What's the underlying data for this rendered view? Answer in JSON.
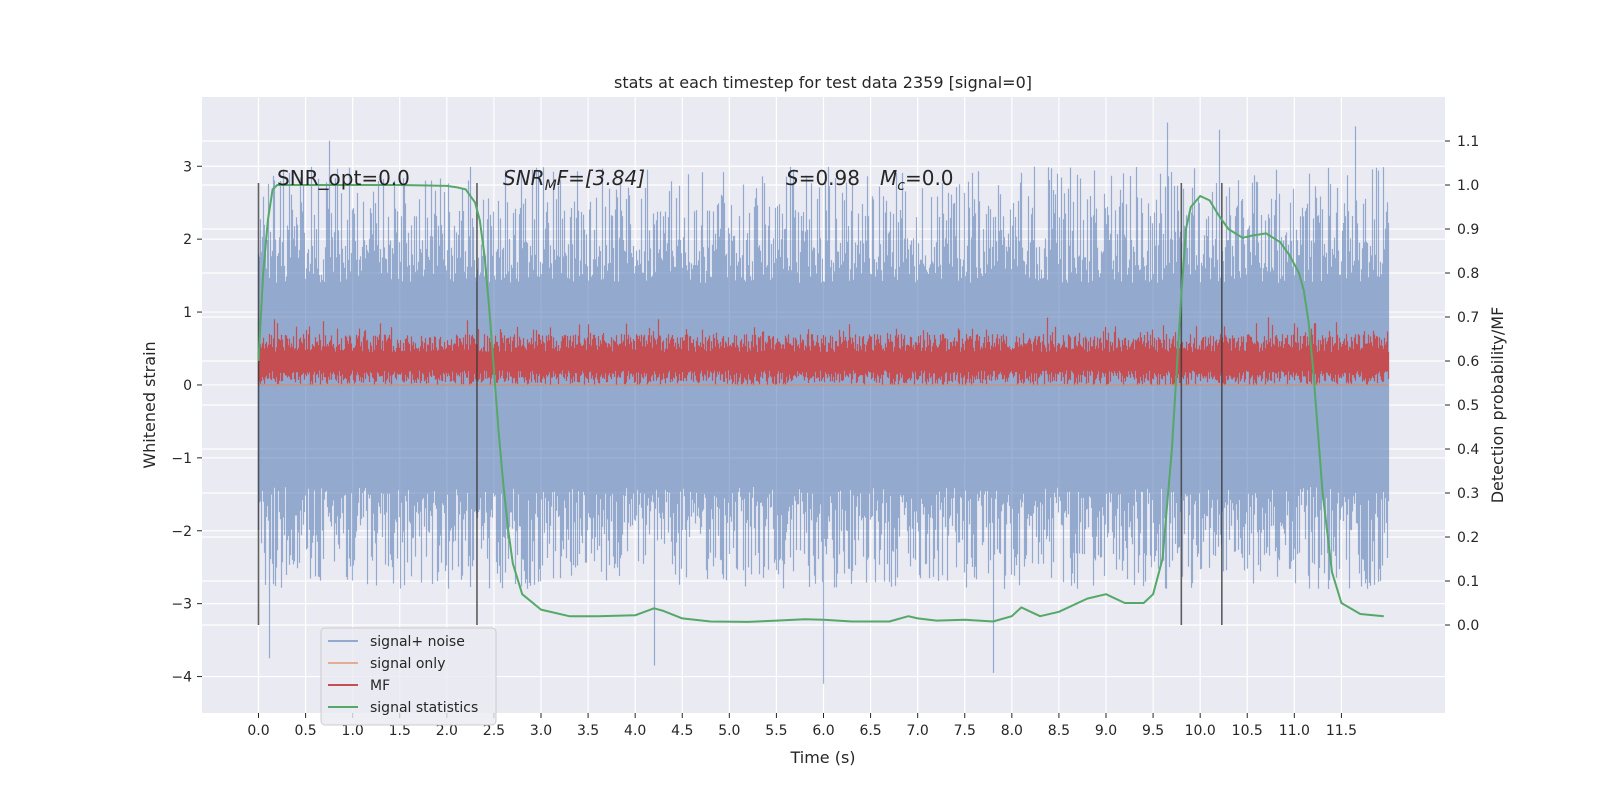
{
  "chart_data": {
    "type": "line",
    "title": "stats at each timestep for test data 2359 [signal=0]",
    "xlabel": "Time (s)",
    "ylabel": "Whitened strain",
    "ylabel_right": "Detection probability/MF",
    "xlim": [
      -0.6,
      12.6
    ],
    "ylim": [
      -4.5,
      3.95
    ],
    "ylim_right": [
      -0.2,
      1.2
    ],
    "x_ticks": [
      "0.0",
      "0.5",
      "1.0",
      "1.5",
      "2.0",
      "2.5",
      "3.0",
      "3.5",
      "4.0",
      "4.5",
      "5.0",
      "5.5",
      "6.0",
      "6.5",
      "7.0",
      "7.5",
      "8.0",
      "8.5",
      "9.0",
      "9.5",
      "10.0",
      "10.5",
      "11.0",
      "11.5"
    ],
    "y_ticks": [
      "−4",
      "−3",
      "−2",
      "−1",
      "0",
      "1",
      "2",
      "3"
    ],
    "y_ticks_right": [
      "0.0",
      "0.1",
      "0.2",
      "0.3",
      "0.4",
      "0.5",
      "0.6",
      "0.7",
      "0.8",
      "0.9",
      "1.0",
      "1.1"
    ],
    "grid": true,
    "legend_position": "lower-left",
    "annotations": {
      "snr_opt": "SNR_opt=0.0",
      "snr_mf_base": "SNR",
      "snr_mf_sub": "M",
      "snr_mf_tail": "F=[3.84]",
      "s_label": "S",
      "s_value": "=0.98",
      "mc_label": "M",
      "mc_sub": "c",
      "mc_value": "=0.0"
    },
    "series": [
      {
        "name": "signal+ noise",
        "axis": "left",
        "color": "#4c72b0",
        "style": "dense noise",
        "t_range": [
          0.0,
          12.0
        ],
        "envelope": [
          -2.3,
          2.3
        ],
        "typical_peak": 3.0,
        "extremes": [
          {
            "t": 0.12,
            "y": 3.25
          },
          {
            "t": 0.12,
            "y": -3.75
          },
          {
            "t": 0.75,
            "y": 3.35
          },
          {
            "t": 4.2,
            "y": -3.85
          },
          {
            "t": 6.0,
            "y": -4.1
          },
          {
            "t": 7.8,
            "y": -3.95
          },
          {
            "t": 9.65,
            "y": 3.6
          },
          {
            "t": 10.2,
            "y": 3.5
          },
          {
            "t": 11.65,
            "y": 3.55
          }
        ]
      },
      {
        "name": "signal only",
        "axis": "left",
        "color": "#dd8452",
        "style": "flat",
        "value": 0.0
      },
      {
        "name": "MF",
        "axis": "left",
        "color": "#c44e52",
        "style": "noise band",
        "t_range": [
          0.0,
          12.0
        ],
        "band": [
          0.0,
          0.95
        ]
      },
      {
        "name": "signal statistics",
        "axis": "right",
        "color": "#55a868",
        "style": "line",
        "x": [
          0.0,
          0.05,
          0.1,
          0.15,
          0.2,
          0.3,
          0.5,
          1.0,
          1.5,
          2.0,
          2.1,
          2.2,
          2.3,
          2.35,
          2.4,
          2.45,
          2.5,
          2.55,
          2.6,
          2.65,
          2.7,
          2.8,
          3.0,
          3.3,
          3.6,
          4.0,
          4.1,
          4.2,
          4.3,
          4.5,
          4.8,
          5.2,
          5.5,
          5.8,
          6.0,
          6.3,
          6.7,
          6.9,
          7.0,
          7.2,
          7.5,
          7.8,
          8.0,
          8.1,
          8.2,
          8.3,
          8.5,
          8.8,
          9.0,
          9.2,
          9.4,
          9.5,
          9.6,
          9.7,
          9.8,
          9.85,
          9.9,
          10.0,
          10.1,
          10.2,
          10.3,
          10.45,
          10.55,
          10.7,
          10.85,
          10.95,
          11.05,
          11.1,
          11.15,
          11.2,
          11.3,
          11.4,
          11.5,
          11.7,
          11.95
        ],
        "values": [
          0.6,
          0.8,
          0.92,
          0.99,
          1.0,
          1.0,
          1.0,
          1.0,
          1.0,
          0.998,
          0.995,
          0.99,
          0.96,
          0.92,
          0.84,
          0.72,
          0.58,
          0.44,
          0.32,
          0.22,
          0.14,
          0.07,
          0.035,
          0.02,
          0.02,
          0.022,
          0.03,
          0.038,
          0.032,
          0.015,
          0.008,
          0.007,
          0.01,
          0.013,
          0.012,
          0.008,
          0.008,
          0.02,
          0.015,
          0.01,
          0.012,
          0.008,
          0.02,
          0.04,
          0.03,
          0.02,
          0.03,
          0.06,
          0.07,
          0.05,
          0.05,
          0.07,
          0.15,
          0.4,
          0.75,
          0.9,
          0.95,
          0.975,
          0.965,
          0.93,
          0.9,
          0.88,
          0.885,
          0.89,
          0.87,
          0.84,
          0.8,
          0.76,
          0.69,
          0.58,
          0.3,
          0.12,
          0.05,
          0.025,
          0.02
        ]
      }
    ],
    "vertical_markers": [
      0.0,
      2.32,
      9.8,
      10.23
    ]
  }
}
